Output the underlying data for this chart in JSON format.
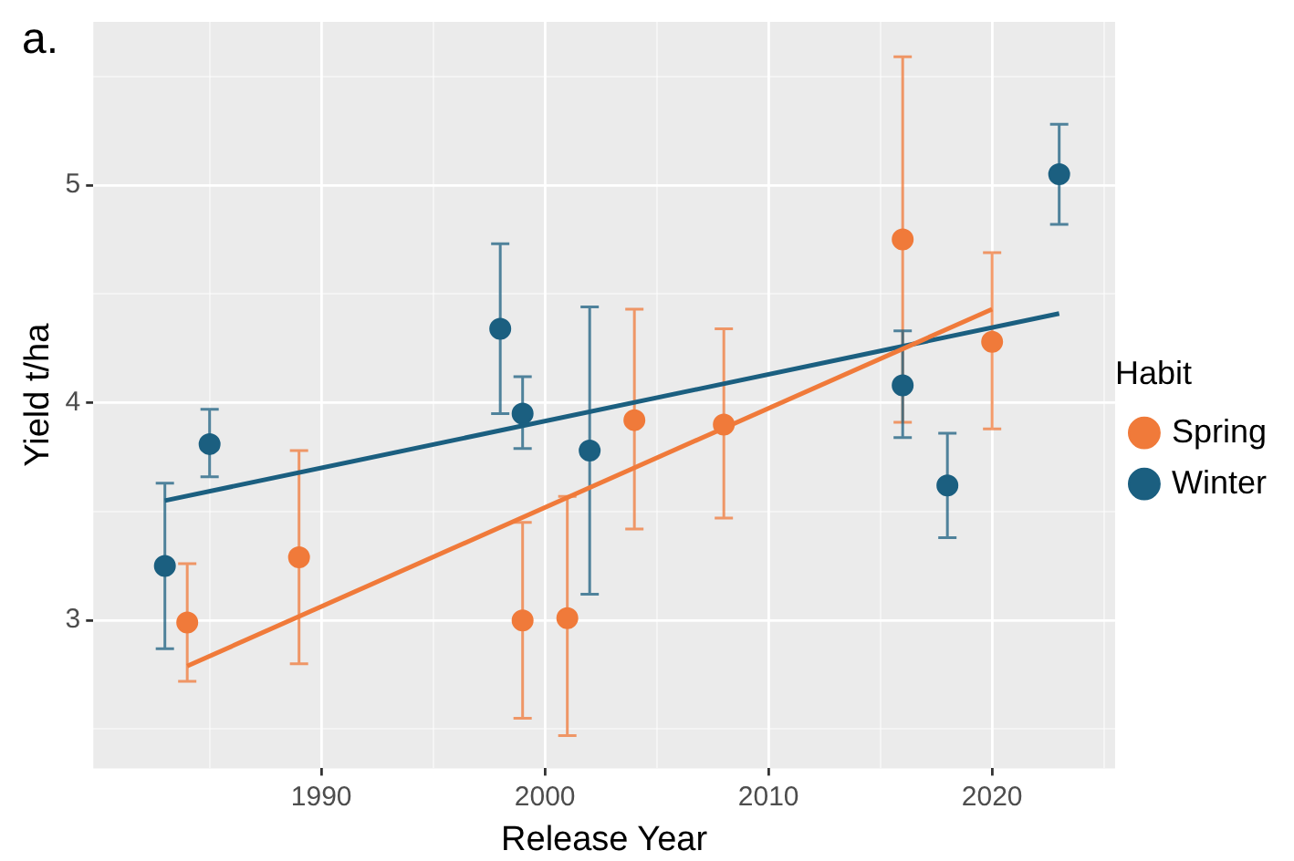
{
  "chart_data": {
    "type": "scatter",
    "xlabel": "Release Year",
    "ylabel": "Yield t/ha",
    "legend_title": "Habit",
    "annotations": [
      "a."
    ],
    "xlim": [
      1979.8,
      2025.5
    ],
    "xticks": [
      {
        "value": 1985,
        "label": null
      },
      1990,
      {
        "value": 1995,
        "label": null
      },
      2000,
      {
        "value": 2005,
        "label": null
      },
      2010,
      {
        "value": 2015,
        "label": null
      },
      2020,
      {
        "value": 2025,
        "label": null
      }
    ],
    "ylim": [
      2.32,
      5.75
    ],
    "yticks": [
      {
        "value": 2.5,
        "label": null
      },
      3,
      {
        "value": 3.5,
        "label": null
      },
      4,
      {
        "value": 4.5,
        "label": null
      },
      5,
      {
        "value": 5.5,
        "label": null
      }
    ],
    "grid": true,
    "legend": "right",
    "marker": "circle",
    "series": [
      {
        "name": "Spring",
        "color": "#f07a3a",
        "x": [
          1984,
          1989,
          1999,
          2001,
          2004,
          2008,
          2016,
          2020
        ],
        "values": [
          2.99,
          3.29,
          3.0,
          3.01,
          3.92,
          3.9,
          4.75,
          4.28
        ],
        "errors": [
          [
            2.72,
            3.26
          ],
          [
            2.8,
            3.78
          ],
          [
            2.55,
            3.45
          ],
          [
            2.47,
            3.57
          ],
          [
            3.42,
            4.43
          ],
          [
            3.47,
            4.34
          ],
          [
            3.91,
            5.59
          ],
          [
            3.88,
            4.69
          ]
        ]
      },
      {
        "name": "Winter",
        "color": "#1b5f80",
        "x": [
          1983,
          1985,
          1998,
          1999,
          2002,
          2016,
          2018,
          2023
        ],
        "values": [
          3.25,
          3.81,
          4.34,
          3.95,
          3.78,
          4.08,
          3.62,
          5.05
        ],
        "errors": [
          [
            2.87,
            3.63
          ],
          [
            3.66,
            3.97
          ],
          [
            3.95,
            4.73
          ],
          [
            3.79,
            4.12
          ],
          [
            3.12,
            4.44
          ],
          [
            3.84,
            4.33
          ],
          [
            3.38,
            3.86
          ],
          [
            4.82,
            5.28
          ]
        ]
      },
      {
        "type": "line",
        "color": "#f07a3a",
        "x": [
          1984,
          2020
        ],
        "values": [
          2.79,
          4.43
        ],
        "marker": "none"
      },
      {
        "type": "line",
        "color": "#1b5f80",
        "x": [
          1983,
          2023
        ],
        "values": [
          3.55,
          4.41
        ],
        "marker": "none"
      }
    ]
  }
}
